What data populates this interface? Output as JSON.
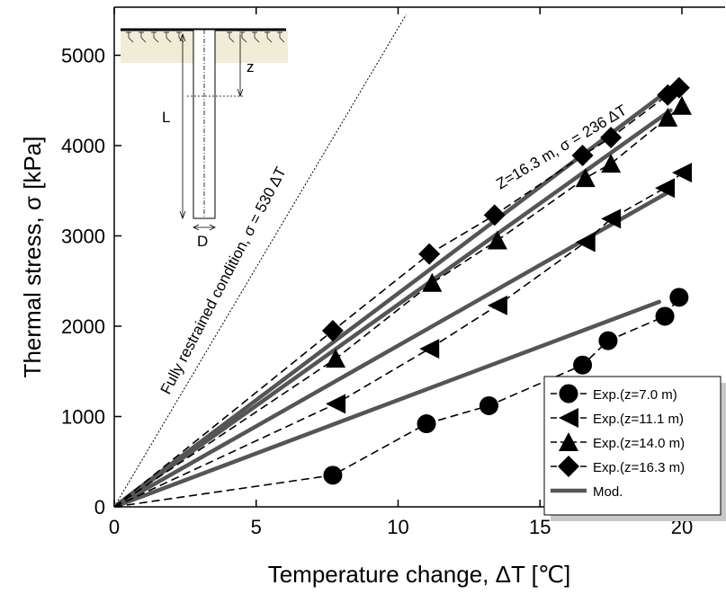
{
  "chart_data": {
    "type": "line",
    "xlabel": "Temperature change, ΔT [℃]",
    "ylabel": "Thermal stress, σ [kPa]",
    "xlim": [
      0,
      21.8
    ],
    "ylim": [
      0,
      5450
    ],
    "x_ticks": [
      "0",
      "5",
      "10",
      "15",
      "20"
    ],
    "y_ticks": [
      "0",
      "1000",
      "2000",
      "3000",
      "4000",
      "5000"
    ],
    "legend_position": "bottom-right",
    "series": [
      {
        "name": "Exp.(z=7.0 m)",
        "marker": "circle",
        "style": "dashed",
        "x": [
          0,
          7.7,
          11.0,
          13.2,
          16.5,
          17.4,
          19.4,
          19.9
        ],
        "y": [
          0,
          350,
          920,
          1120,
          1570,
          1840,
          2110,
          2320
        ]
      },
      {
        "name": "Exp.(z=11.1 m)",
        "marker": "triangle-left",
        "style": "dashed",
        "x": [
          0,
          7.8,
          11.1,
          13.5,
          16.6,
          17.5,
          19.4,
          20.0
        ],
        "y": [
          0,
          1140,
          1750,
          2230,
          2930,
          3190,
          3530,
          3700
        ]
      },
      {
        "name": "Exp.(z=14.0 m)",
        "marker": "triangle-up",
        "style": "dashed",
        "x": [
          0,
          7.8,
          11.2,
          13.5,
          16.6,
          17.5,
          19.5,
          20.0
        ],
        "y": [
          0,
          1640,
          2480,
          2950,
          3640,
          3800,
          4310,
          4440
        ]
      },
      {
        "name": "Exp.(z=16.3 m)",
        "marker": "diamond",
        "style": "dashed",
        "x": [
          0,
          7.7,
          11.1,
          13.4,
          16.5,
          17.5,
          19.5,
          19.9
        ],
        "y": [
          0,
          1950,
          2800,
          3230,
          3890,
          4090,
          4560,
          4640
        ]
      },
      {
        "name": "Mod.",
        "marker": "none",
        "style": "solid",
        "lines": [
          {
            "x": [
              0,
              19.2
            ],
            "y": [
              0,
              2270
            ]
          },
          {
            "x": [
              0,
              19.5
            ],
            "y": [
              0,
              3480
            ]
          },
          {
            "x": [
              0,
              19.6
            ],
            "y": [
              0,
              4390
            ]
          },
          {
            "x": [
              0,
              19.6
            ],
            "y": [
              0,
              4630
            ]
          }
        ]
      }
    ],
    "reference_line": {
      "label": "Fully restrained condition, σ = 530 ΔT",
      "slope": 530,
      "style": "dotted"
    },
    "annotations": [
      "Z=16.3 m, σ = 236 ΔT",
      "Fully restrained condition, σ = 530 ΔT"
    ],
    "inset": {
      "labels": [
        "z",
        "L",
        "D"
      ]
    }
  },
  "colors": {
    "model_line": "#555555",
    "experiment": "#000000",
    "soil_fill": "#f1ecd5",
    "legend_shadow": "#c8c8c8"
  }
}
